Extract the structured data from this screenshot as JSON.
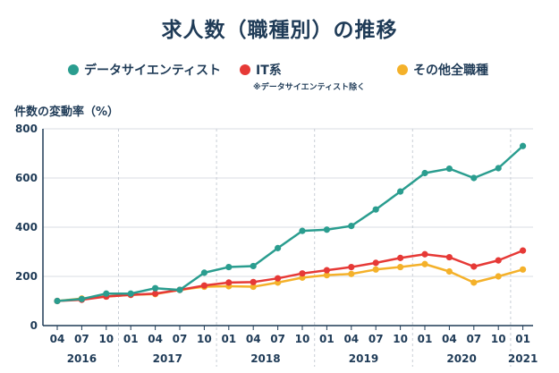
{
  "chart_data": {
    "type": "line",
    "title": "求人数（職種別）の推移",
    "ylabel": "件数の変動率（%）",
    "xlabel": "",
    "ylim": [
      0,
      800
    ],
    "yticks": [
      0,
      200,
      400,
      600,
      800
    ],
    "x": [
      "04",
      "07",
      "10",
      "01",
      "04",
      "07",
      "10",
      "01",
      "04",
      "07",
      "10",
      "01",
      "04",
      "07",
      "10",
      "01",
      "04",
      "07",
      "10",
      "01"
    ],
    "year_labels": [
      "2016",
      "2017",
      "2018",
      "2019",
      "2020",
      "2021"
    ],
    "legend_placement": "top",
    "grid": true,
    "series": [
      {
        "name": "データサイエンティスト",
        "color": "#2a9d8f",
        "values": [
          100,
          108,
          130,
          130,
          152,
          145,
          215,
          238,
          242,
          315,
          385,
          390,
          405,
          472,
          545,
          620,
          638,
          600,
          640,
          730
        ]
      },
      {
        "name": "IT系",
        "color": "#e63936",
        "values": [
          100,
          105,
          118,
          125,
          130,
          145,
          163,
          175,
          177,
          192,
          212,
          225,
          238,
          255,
          275,
          290,
          278,
          240,
          265,
          305
        ]
      },
      {
        "name": "その他全職種",
        "color": "#f4b12a",
        "values": [
          100,
          110,
          118,
          125,
          128,
          145,
          158,
          160,
          158,
          175,
          195,
          205,
          210,
          228,
          238,
          250,
          220,
          175,
          200,
          228
        ]
      }
    ],
    "legend_note": "※データサイエンティスト除く"
  }
}
